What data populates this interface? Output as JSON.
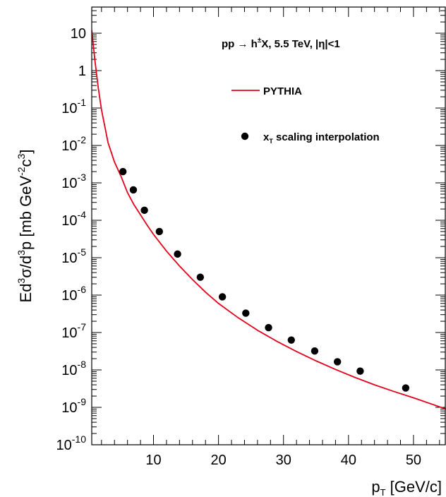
{
  "chart_data": {
    "type": "line",
    "title": "pp → h±X, 5.5 TeV, |η|<1",
    "title_parts": {
      "a": "pp ",
      "arrow": "→",
      "b": " h",
      "sup": "±",
      "c": "X, 5.5 TeV, |η|<1"
    },
    "xlabel": "p_T [GeV/c]",
    "xlabel_parts": {
      "main": "p",
      "sub": "T",
      "rest": " [GeV/c]"
    },
    "ylabel": "Ed^3σ/d^3p [mb GeV^-2c^3]",
    "ylabel_parts": {
      "a": "Ed",
      "s1": "3",
      "b": "σ/d",
      "s2": "3",
      "c": "p [mb GeV",
      "s3": "-2",
      "d": "c",
      "s4": "3",
      "e": "]"
    },
    "x_scale": "linear",
    "y_scale": "log",
    "xlim": [
      0.5,
      55
    ],
    "ylim": [
      1e-10,
      50
    ],
    "x_ticks": [
      10,
      20,
      30,
      40,
      50
    ],
    "y_ticks": [
      {
        "value": 1e-10,
        "base": "10",
        "exp": "-10"
      },
      {
        "value": 1e-09,
        "base": "10",
        "exp": "-9"
      },
      {
        "value": 1e-08,
        "base": "10",
        "exp": "-8"
      },
      {
        "value": 1e-07,
        "base": "10",
        "exp": "-7"
      },
      {
        "value": 1e-06,
        "base": "10",
        "exp": "-6"
      },
      {
        "value": 1e-05,
        "base": "10",
        "exp": "-5"
      },
      {
        "value": 0.0001,
        "base": "10",
        "exp": "-4"
      },
      {
        "value": 0.001,
        "base": "10",
        "exp": "-3"
      },
      {
        "value": 0.01,
        "base": "10",
        "exp": "-2"
      },
      {
        "value": 0.1,
        "base": "10",
        "exp": "-1"
      },
      {
        "value": 1,
        "base": "1",
        "exp": ""
      },
      {
        "value": 10,
        "base": "10",
        "exp": ""
      }
    ],
    "grid": false,
    "legend_position": "top-right",
    "colors": {
      "line": "#e3001b",
      "points": "#000000",
      "axes": "#000000"
    },
    "series": [
      {
        "name": "PYTHIA",
        "kind": "line",
        "x": [
          0.5,
          1,
          1.5,
          2,
          3,
          4,
          5,
          6,
          7,
          8,
          9,
          10,
          12,
          14,
          16,
          18,
          20,
          23,
          26,
          29,
          32,
          35,
          38,
          41,
          44,
          47,
          50,
          55
        ],
        "y": [
          12,
          1.8,
          0.35,
          0.09,
          0.012,
          0.0036,
          0.0015,
          0.00055,
          0.00026,
          0.00014,
          7.5e-05,
          4.2e-05,
          1.5e-05,
          6e-06,
          2.6e-06,
          1.2e-06,
          6e-07,
          2.5e-07,
          1.15e-07,
          5.8e-08,
          3.1e-08,
          1.75e-08,
          1.03e-08,
          6.3e-09,
          4e-09,
          2.65e-09,
          1.8e-09,
          9e-10
        ]
      },
      {
        "name": "x_T scaling interpolation",
        "name_parts": {
          "main": "x",
          "sub": "T",
          "rest": " scaling interpolation"
        },
        "kind": "scatter",
        "x": [
          5.3,
          6.9,
          8.6,
          10.9,
          13.7,
          17.2,
          20.6,
          24.2,
          27.7,
          31.2,
          34.8,
          38.3,
          41.8,
          48.8
        ],
        "y": [
          0.002,
          0.00065,
          0.000185,
          5e-05,
          1.25e-05,
          3e-06,
          9e-07,
          3.3e-07,
          1.35e-07,
          6.3e-08,
          3.2e-08,
          1.65e-08,
          9.3e-09,
          3.3e-09
        ]
      }
    ]
  }
}
